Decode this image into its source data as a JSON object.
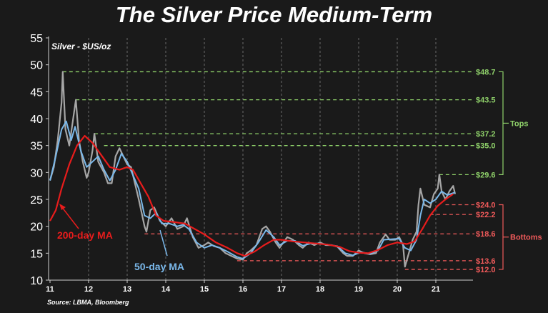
{
  "title": "The Silver Price Medium-Term",
  "source": "Source: LBMA, Bloomberg",
  "chart_data": {
    "type": "line",
    "ylabel": "Silver - $US/oz",
    "xlim": [
      2011,
      2022
    ],
    "ylim": [
      10,
      55
    ],
    "x_ticks": [
      "11",
      "12",
      "13",
      "14",
      "15",
      "16",
      "17",
      "18",
      "19",
      "20",
      "21"
    ],
    "y_ticks": [
      "10",
      "15",
      "20",
      "25",
      "30",
      "35",
      "40",
      "45",
      "50",
      "55"
    ],
    "grid": "vertical dashed",
    "series": [
      {
        "name": "Silver price",
        "color": "#a6a6a6",
        "points": [
          [
            2011.0,
            28.5
          ],
          [
            2011.1,
            31
          ],
          [
            2011.2,
            36
          ],
          [
            2011.3,
            43
          ],
          [
            2011.33,
            48.7
          ],
          [
            2011.4,
            38
          ],
          [
            2011.5,
            35
          ],
          [
            2011.6,
            40
          ],
          [
            2011.67,
            43.5
          ],
          [
            2011.75,
            36
          ],
          [
            2011.85,
            32
          ],
          [
            2011.95,
            29
          ],
          [
            2012.0,
            30
          ],
          [
            2012.1,
            34
          ],
          [
            2012.15,
            37.2
          ],
          [
            2012.25,
            32
          ],
          [
            2012.4,
            30
          ],
          [
            2012.5,
            28
          ],
          [
            2012.6,
            28
          ],
          [
            2012.7,
            33
          ],
          [
            2012.8,
            34.5
          ],
          [
            2012.9,
            33
          ],
          [
            2013.0,
            31.5
          ],
          [
            2013.1,
            31
          ],
          [
            2013.2,
            28
          ],
          [
            2013.3,
            25
          ],
          [
            2013.45,
            20
          ],
          [
            2013.5,
            19
          ],
          [
            2013.6,
            23
          ],
          [
            2013.7,
            23.5
          ],
          [
            2013.85,
            21
          ],
          [
            2014.0,
            20
          ],
          [
            2014.15,
            21.5
          ],
          [
            2014.3,
            19.5
          ],
          [
            2014.45,
            20
          ],
          [
            2014.55,
            21.5
          ],
          [
            2014.7,
            18
          ],
          [
            2014.85,
            16
          ],
          [
            2015.0,
            16.5
          ],
          [
            2015.1,
            17
          ],
          [
            2015.25,
            16.3
          ],
          [
            2015.4,
            16
          ],
          [
            2015.55,
            15
          ],
          [
            2015.7,
            14.5
          ],
          [
            2015.85,
            14
          ],
          [
            2016.0,
            13.8
          ],
          [
            2016.1,
            15
          ],
          [
            2016.2,
            15.5
          ],
          [
            2016.35,
            16.5
          ],
          [
            2016.5,
            19.5
          ],
          [
            2016.6,
            20
          ],
          [
            2016.7,
            19
          ],
          [
            2016.85,
            17
          ],
          [
            2016.95,
            16
          ],
          [
            2017.0,
            16.5
          ],
          [
            2017.15,
            18
          ],
          [
            2017.3,
            17.5
          ],
          [
            2017.45,
            16.5
          ],
          [
            2017.55,
            16
          ],
          [
            2017.7,
            17
          ],
          [
            2017.85,
            16.5
          ],
          [
            2018.0,
            17
          ],
          [
            2018.15,
            16.5
          ],
          [
            2018.3,
            16.5
          ],
          [
            2018.45,
            16.2
          ],
          [
            2018.6,
            15
          ],
          [
            2018.7,
            14.5
          ],
          [
            2018.85,
            14.5
          ],
          [
            2019.0,
            15.5
          ],
          [
            2019.15,
            15
          ],
          [
            2019.3,
            14.8
          ],
          [
            2019.45,
            15
          ],
          [
            2019.55,
            17
          ],
          [
            2019.7,
            18.5
          ],
          [
            2019.8,
            17.5
          ],
          [
            2019.95,
            17.5
          ],
          [
            2020.05,
            18
          ],
          [
            2020.15,
            16.5
          ],
          [
            2020.2,
            12.5
          ],
          [
            2020.3,
            15
          ],
          [
            2020.4,
            17.5
          ],
          [
            2020.5,
            19
          ],
          [
            2020.55,
            24
          ],
          [
            2020.6,
            27
          ],
          [
            2020.7,
            24
          ],
          [
            2020.85,
            23.5
          ],
          [
            2020.95,
            26
          ],
          [
            2021.05,
            27
          ],
          [
            2021.09,
            29.6
          ],
          [
            2021.15,
            26.5
          ],
          [
            2021.25,
            25
          ],
          [
            2021.35,
            26.5
          ],
          [
            2021.45,
            27.5
          ],
          [
            2021.5,
            26
          ]
        ]
      },
      {
        "name": "50-day MA",
        "color": "#7ab8ea",
        "points": [
          [
            2011.0,
            28.5
          ],
          [
            2011.15,
            33
          ],
          [
            2011.3,
            38
          ],
          [
            2011.42,
            39.5
          ],
          [
            2011.55,
            36
          ],
          [
            2011.65,
            38.5
          ],
          [
            2011.8,
            34
          ],
          [
            2011.95,
            31
          ],
          [
            2012.1,
            32
          ],
          [
            2012.25,
            33
          ],
          [
            2012.4,
            30.5
          ],
          [
            2012.55,
            28.5
          ],
          [
            2012.7,
            30.5
          ],
          [
            2012.85,
            33.5
          ],
          [
            2013.0,
            32
          ],
          [
            2013.15,
            29.5
          ],
          [
            2013.3,
            27
          ],
          [
            2013.45,
            22
          ],
          [
            2013.6,
            21.5
          ],
          [
            2013.75,
            22.5
          ],
          [
            2013.9,
            20.5
          ],
          [
            2014.1,
            20.5
          ],
          [
            2014.3,
            20
          ],
          [
            2014.45,
            20.3
          ],
          [
            2014.6,
            19.5
          ],
          [
            2014.8,
            17
          ],
          [
            2015.0,
            16
          ],
          [
            2015.2,
            16.5
          ],
          [
            2015.4,
            16
          ],
          [
            2015.6,
            15.3
          ],
          [
            2015.85,
            14.3
          ],
          [
            2016.0,
            14
          ],
          [
            2016.2,
            15
          ],
          [
            2016.4,
            17
          ],
          [
            2016.6,
            19.3
          ],
          [
            2016.8,
            18
          ],
          [
            2016.95,
            16.5
          ],
          [
            2017.15,
            17.3
          ],
          [
            2017.35,
            17.3
          ],
          [
            2017.55,
            16.4
          ],
          [
            2017.75,
            16.8
          ],
          [
            2017.95,
            16.8
          ],
          [
            2018.2,
            16.6
          ],
          [
            2018.45,
            16.3
          ],
          [
            2018.65,
            15
          ],
          [
            2018.85,
            14.6
          ],
          [
            2019.05,
            15.2
          ],
          [
            2019.3,
            14.9
          ],
          [
            2019.5,
            15.5
          ],
          [
            2019.65,
            17.5
          ],
          [
            2019.85,
            17.6
          ],
          [
            2020.05,
            17.7
          ],
          [
            2020.2,
            16
          ],
          [
            2020.35,
            15.5
          ],
          [
            2020.5,
            17.5
          ],
          [
            2020.6,
            22
          ],
          [
            2020.7,
            25
          ],
          [
            2020.85,
            24.3
          ],
          [
            2021.0,
            25
          ],
          [
            2021.15,
            26.5
          ],
          [
            2021.3,
            25.8
          ],
          [
            2021.5,
            26.3
          ]
        ]
      },
      {
        "name": "200-day MA",
        "color": "#e81c1c",
        "points": [
          [
            2011.0,
            21
          ],
          [
            2011.15,
            23
          ],
          [
            2011.3,
            27
          ],
          [
            2011.5,
            31.5
          ],
          [
            2011.7,
            35
          ],
          [
            2011.9,
            36.8
          ],
          [
            2012.1,
            35.5
          ],
          [
            2012.35,
            33
          ],
          [
            2012.55,
            31
          ],
          [
            2012.8,
            30.5
          ],
          [
            2013.0,
            31
          ],
          [
            2013.15,
            30.5
          ],
          [
            2013.35,
            28
          ],
          [
            2013.55,
            25.5
          ],
          [
            2013.75,
            22
          ],
          [
            2013.95,
            21
          ],
          [
            2014.2,
            20.8
          ],
          [
            2014.5,
            20.5
          ],
          [
            2014.75,
            19.5
          ],
          [
            2015.0,
            18.5
          ],
          [
            2015.3,
            17
          ],
          [
            2015.6,
            16
          ],
          [
            2015.85,
            15
          ],
          [
            2016.05,
            14.5
          ],
          [
            2016.3,
            15.3
          ],
          [
            2016.55,
            16.5
          ],
          [
            2016.8,
            17.5
          ],
          [
            2017.0,
            17.5
          ],
          [
            2017.3,
            17.2
          ],
          [
            2017.6,
            17
          ],
          [
            2017.9,
            16.8
          ],
          [
            2018.2,
            16.6
          ],
          [
            2018.5,
            16.2
          ],
          [
            2018.75,
            15.4
          ],
          [
            2019.0,
            15.1
          ],
          [
            2019.25,
            15
          ],
          [
            2019.5,
            15.6
          ],
          [
            2019.75,
            16.5
          ],
          [
            2020.0,
            17
          ],
          [
            2020.25,
            16.7
          ],
          [
            2020.45,
            17.2
          ],
          [
            2020.65,
            19.5
          ],
          [
            2020.85,
            22
          ],
          [
            2021.05,
            23.8
          ],
          [
            2021.25,
            25
          ],
          [
            2021.45,
            26
          ]
        ]
      }
    ],
    "levels": [
      {
        "label": "$48.7",
        "value": 48.7,
        "group": "tops",
        "from": 2011.33
      },
      {
        "label": "$43.5",
        "value": 43.5,
        "group": "tops",
        "from": 2011.67
      },
      {
        "label": "$37.2",
        "value": 37.2,
        "group": "tops",
        "from": 2012.15
      },
      {
        "label": "$35.0",
        "value": 35.0,
        "group": "tops",
        "from": 2012.4
      },
      {
        "label": "$29.6",
        "value": 29.6,
        "group": "tops",
        "from": 2021.09
      },
      {
        "label": "$24.0",
        "value": 24.0,
        "group": "bottoms",
        "from": 2021.25
      },
      {
        "label": "$22.2",
        "value": 22.2,
        "group": "bottoms",
        "from": 2020.85
      },
      {
        "label": "$18.6",
        "value": 18.6,
        "group": "bottoms",
        "from": 2013.45
      },
      {
        "label": "$13.6",
        "value": 13.6,
        "group": "bottoms",
        "from": 2015.85
      },
      {
        "label": "$12.0",
        "value": 12.0,
        "group": "bottoms",
        "from": 2020.2
      }
    ],
    "groups": {
      "tops": "Tops",
      "bottoms": "Bottoms"
    },
    "annotations": {
      "ma200": "200-day MA",
      "ma50": "50-day MA"
    },
    "colors": {
      "tops": "#8fd16a",
      "bottoms": "#f05a5a",
      "background": "#1a1a1a"
    }
  }
}
